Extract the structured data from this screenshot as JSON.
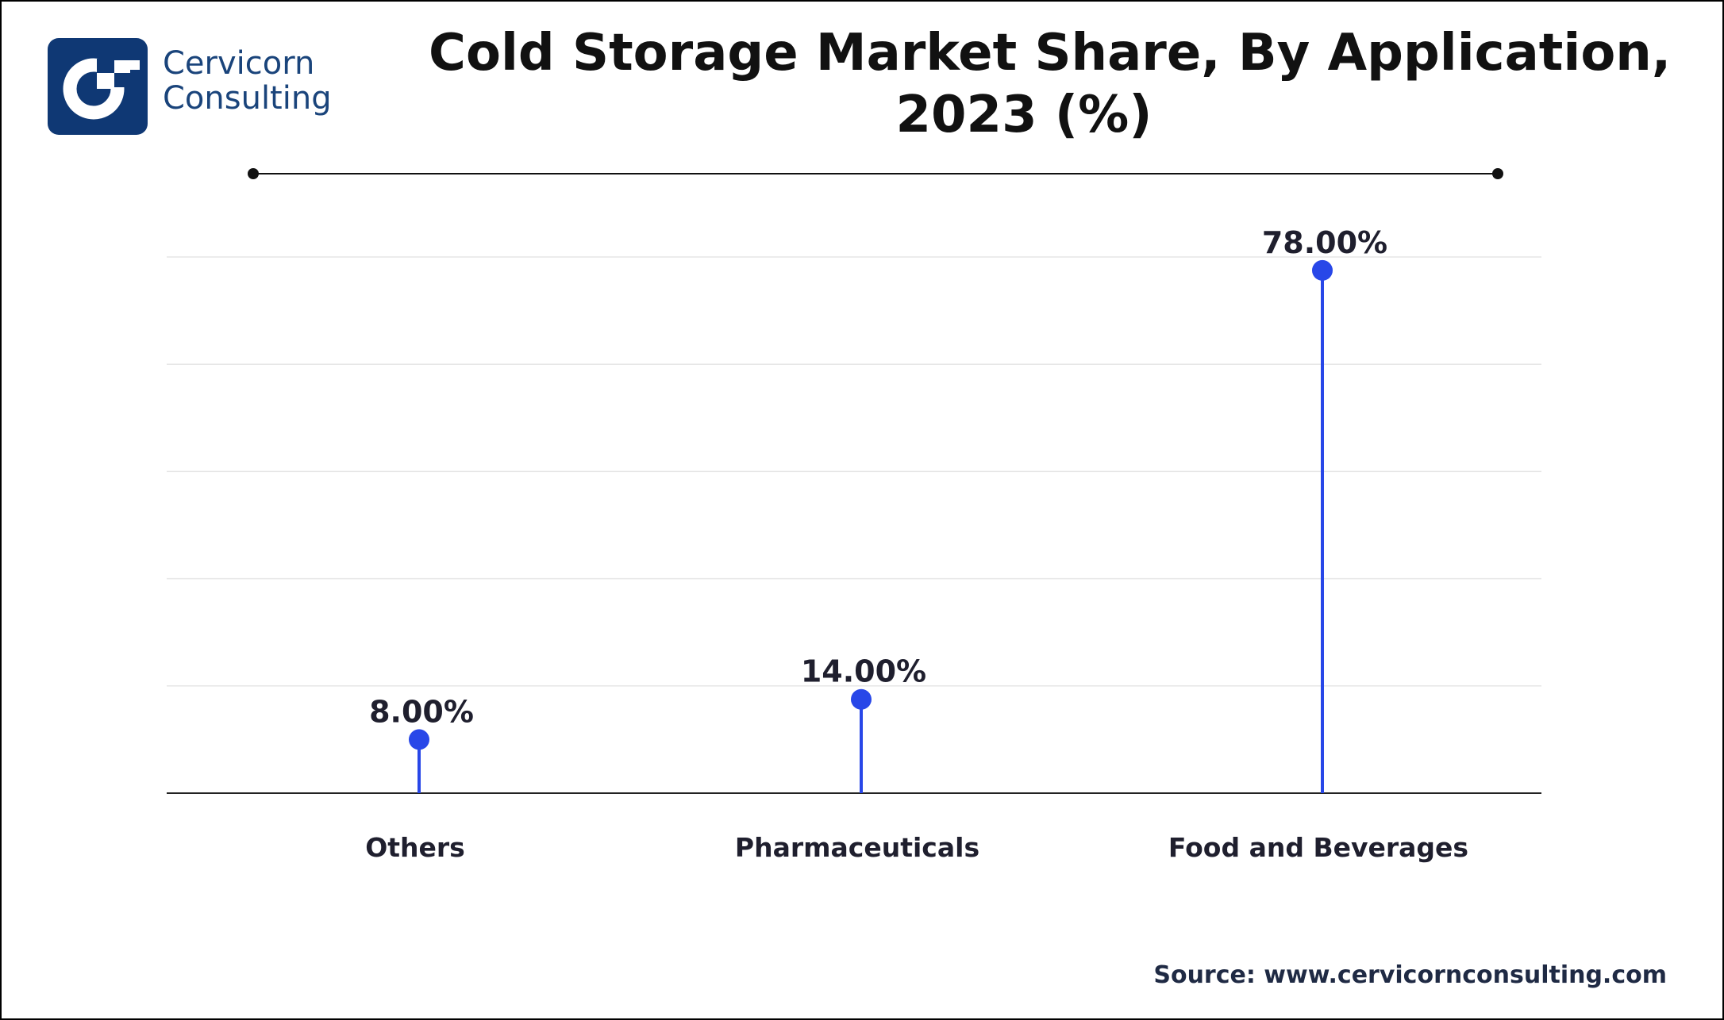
{
  "brand": {
    "line1": "Cervicorn",
    "line2": "Consulting",
    "logo_icon": "cervicorn-c-logo-icon",
    "logo_color": "#0f3874"
  },
  "title_lines": [
    "Cold Storage Market Share, By Application,",
    "2023 (%)"
  ],
  "source": "Source: www.cervicornconsulting.com",
  "colors": {
    "stem": "#2847e8",
    "text": "#1f1f2e",
    "grid": "#e6e6e6",
    "axis": "#222222"
  },
  "chart_data": {
    "type": "lollipop",
    "title": "Cold Storage Market Share, By Application, 2023 (%)",
    "categories": [
      "Others",
      "Pharmaceuticals",
      "Food and Beverages"
    ],
    "values": [
      8.0,
      14.0,
      78.0
    ],
    "value_labels": [
      "8.00%",
      "14.00%",
      "78.00%"
    ],
    "unit": "%",
    "ylim": [
      0,
      80
    ],
    "grid": true,
    "legend": "none"
  }
}
